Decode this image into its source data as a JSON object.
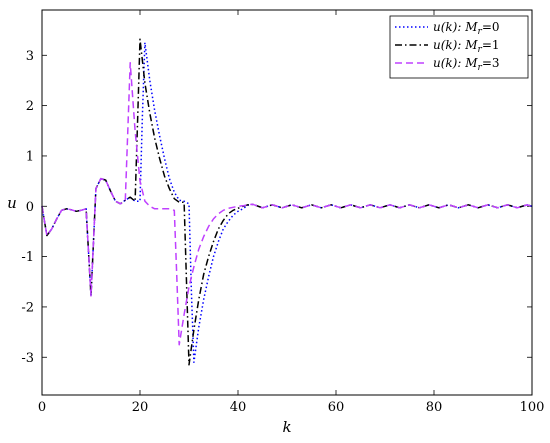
{
  "chart_data": {
    "type": "line",
    "xlabel": "k",
    "ylabel": "u",
    "xlim": [
      0,
      100
    ],
    "ylim": [
      -3.75,
      3.9
    ],
    "x_ticks": [
      0,
      20,
      40,
      60,
      80,
      100
    ],
    "x_tick_labels": [
      "0",
      "20",
      "40",
      "60",
      "80",
      "100"
    ],
    "y_ticks": [
      -3,
      -2,
      -1,
      0,
      1,
      2,
      3
    ],
    "y_tick_labels": [
      "-3",
      "-2",
      "-1",
      "0",
      "1",
      "2",
      "3"
    ],
    "grid": false,
    "legend_position": "top-right",
    "series": [
      {
        "name": "u(k): Mr=0",
        "legend_main": "u(k): M",
        "legend_sub": "r",
        "legend_tail": "=0",
        "color": "#0000ff",
        "dash": "1.5,2.5",
        "x": [
          0,
          0.5,
          1,
          2,
          3,
          4,
          5,
          6,
          7,
          8,
          9,
          9.5,
          10,
          11,
          12,
          13,
          14,
          15,
          16,
          17,
          18,
          19,
          20,
          20.5,
          21,
          22,
          23,
          24,
          25,
          26,
          27,
          28,
          29,
          30,
          30.5,
          31,
          32,
          33,
          34,
          35,
          36,
          37,
          38,
          39,
          40,
          41,
          42,
          43,
          45,
          47,
          49,
          51,
          53,
          55,
          57,
          59,
          61,
          63,
          65,
          67,
          69,
          71,
          73,
          75,
          77,
          79,
          81,
          83,
          85,
          87,
          89,
          91,
          93,
          95,
          97,
          99,
          100
        ],
        "y": [
          0,
          -0.3,
          -0.58,
          -0.45,
          -0.25,
          -0.08,
          -0.05,
          -0.07,
          -0.1,
          -0.08,
          -0.05,
          -0.9,
          -1.78,
          0.35,
          0.55,
          0.52,
          0.3,
          0.1,
          0.05,
          0.12,
          0.18,
          0.1,
          0.1,
          1.8,
          3.25,
          2.5,
          1.9,
          1.4,
          0.95,
          0.55,
          0.28,
          0.12,
          0.1,
          0.05,
          -1.7,
          -3.1,
          -2.4,
          -1.85,
          -1.4,
          -1.0,
          -0.7,
          -0.45,
          -0.3,
          -0.18,
          -0.1,
          -0.05,
          0.02,
          0.04,
          -0.03,
          0.03,
          -0.03,
          0.03,
          -0.03,
          0.03,
          -0.03,
          0.03,
          -0.03,
          0.03,
          -0.03,
          0.03,
          -0.03,
          0.03,
          -0.03,
          0.03,
          -0.03,
          0.03,
          -0.03,
          0.03,
          -0.03,
          0.03,
          -0.03,
          0.03,
          -0.03,
          0.03,
          -0.03,
          0.03,
          0
        ]
      },
      {
        "name": "u(k): Mr=1",
        "legend_main": "u(k): M",
        "legend_sub": "r",
        "legend_tail": "=1",
        "color": "#000000",
        "dash": "7,3,1.5,3",
        "x": [
          0,
          0.5,
          1,
          2,
          3,
          4,
          5,
          6,
          7,
          8,
          9,
          9.5,
          10,
          11,
          12,
          13,
          14,
          15,
          16,
          17,
          18,
          19,
          19.5,
          20,
          21,
          22,
          23,
          24,
          25,
          26,
          27,
          28,
          29,
          29.5,
          30,
          31,
          32,
          33,
          34,
          35,
          36,
          37,
          38,
          39,
          40,
          41,
          42,
          43,
          45,
          47,
          49,
          51,
          53,
          55,
          57,
          59,
          61,
          63,
          65,
          67,
          69,
          71,
          73,
          75,
          77,
          79,
          81,
          83,
          85,
          87,
          89,
          91,
          93,
          95,
          97,
          99,
          100
        ],
        "y": [
          0,
          -0.3,
          -0.58,
          -0.45,
          -0.25,
          -0.08,
          -0.05,
          -0.07,
          -0.1,
          -0.08,
          -0.05,
          -0.9,
          -1.78,
          0.35,
          0.55,
          0.52,
          0.3,
          0.1,
          0.05,
          0.12,
          0.18,
          0.1,
          1.7,
          3.32,
          2.45,
          1.85,
          1.35,
          0.95,
          0.6,
          0.35,
          0.15,
          0.08,
          0.08,
          -1.5,
          -3.15,
          -2.45,
          -1.85,
          -1.35,
          -1.0,
          -0.7,
          -0.45,
          -0.28,
          -0.15,
          -0.08,
          -0.04,
          0.0,
          0.03,
          0.04,
          -0.03,
          0.03,
          -0.03,
          0.03,
          -0.03,
          0.03,
          -0.03,
          0.03,
          -0.03,
          0.03,
          -0.03,
          0.03,
          -0.03,
          0.03,
          -0.03,
          0.03,
          -0.03,
          0.03,
          -0.03,
          0.03,
          -0.03,
          0.03,
          -0.03,
          0.03,
          -0.03,
          0.03,
          -0.03,
          0.03,
          0
        ]
      },
      {
        "name": "u(k): Mr=3",
        "legend_main": "u(k): M",
        "legend_sub": "r",
        "legend_tail": "=3",
        "color": "#bf40ff",
        "dash": "7,4",
        "x": [
          0,
          0.5,
          1,
          2,
          3,
          4,
          5,
          6,
          7,
          8,
          9,
          9.5,
          10,
          11,
          12,
          13,
          14,
          15,
          16,
          17,
          17.5,
          18,
          19,
          20,
          21,
          22,
          23,
          24,
          25,
          26,
          27,
          27.5,
          28,
          29,
          30,
          31,
          32,
          33,
          34,
          35,
          36,
          37,
          38,
          39,
          40,
          41,
          42,
          43,
          45,
          47,
          49,
          51,
          53,
          55,
          57,
          59,
          61,
          63,
          65,
          67,
          69,
          71,
          73,
          75,
          77,
          79,
          81,
          83,
          85,
          87,
          89,
          91,
          93,
          95,
          97,
          99,
          100
        ],
        "y": [
          0,
          -0.3,
          -0.58,
          -0.45,
          -0.25,
          -0.08,
          -0.05,
          -0.07,
          -0.1,
          -0.08,
          -0.05,
          -0.9,
          -1.78,
          0.35,
          0.55,
          0.52,
          0.3,
          0.1,
          0.05,
          0.12,
          1.5,
          2.85,
          1.5,
          0.5,
          0.1,
          0.0,
          -0.05,
          -0.05,
          -0.05,
          -0.05,
          -0.08,
          -1.4,
          -2.75,
          -2.15,
          -1.6,
          -1.2,
          -0.85,
          -0.6,
          -0.4,
          -0.25,
          -0.15,
          -0.08,
          -0.04,
          -0.02,
          0.0,
          0.01,
          0.03,
          0.04,
          -0.03,
          0.03,
          -0.03,
          0.03,
          -0.03,
          0.03,
          -0.03,
          0.03,
          -0.03,
          0.03,
          -0.03,
          0.03,
          -0.03,
          0.03,
          -0.03,
          0.03,
          -0.03,
          0.03,
          -0.03,
          0.03,
          -0.03,
          0.03,
          -0.03,
          0.03,
          -0.03,
          0.03,
          -0.03,
          0.03,
          0
        ]
      }
    ]
  }
}
